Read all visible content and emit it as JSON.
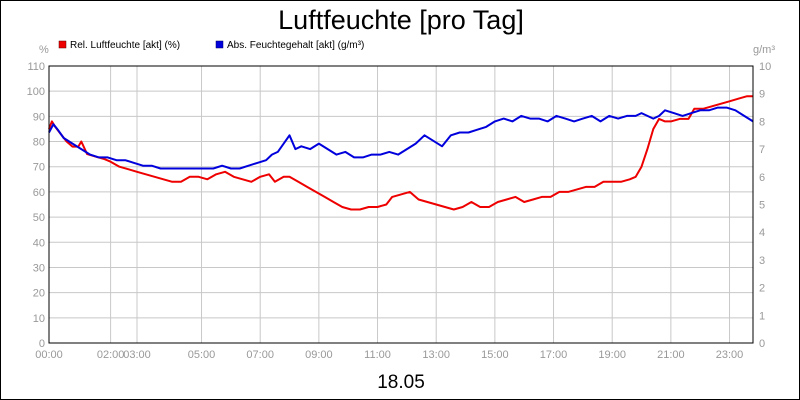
{
  "chart_data": {
    "type": "line",
    "title": "Luftfeuchte [pro Tag]",
    "subtitle": "18.05",
    "ylabel_left": "%",
    "ylabel_right": "g/m³",
    "ylim_left": [
      0,
      110
    ],
    "ylim_right": [
      0,
      10
    ],
    "y_ticks_left": [
      0,
      10,
      20,
      30,
      40,
      50,
      60,
      70,
      80,
      90,
      100,
      110
    ],
    "y_ticks_right": [
      0,
      1,
      2,
      3,
      4,
      5,
      6,
      7,
      8,
      9,
      10
    ],
    "xlim_hours": [
      0,
      24
    ],
    "x_ticks": [
      {
        "h": 0,
        "label": "00:00"
      },
      {
        "h": 2.1,
        "label": "02:00"
      },
      {
        "h": 3.0,
        "label": "03:00"
      },
      {
        "h": 5.2,
        "label": "05:00"
      },
      {
        "h": 7.2,
        "label": "07:00"
      },
      {
        "h": 9.2,
        "label": "09:00"
      },
      {
        "h": 11.2,
        "label": "11:00"
      },
      {
        "h": 13.2,
        "label": "13:00"
      },
      {
        "h": 15.2,
        "label": "15:00"
      },
      {
        "h": 17.2,
        "label": "17:00"
      },
      {
        "h": 19.2,
        "label": "19:00"
      },
      {
        "h": 21.2,
        "label": "21:00"
      },
      {
        "h": 23.2,
        "label": "23:00"
      }
    ],
    "grid": true,
    "legend_position": "top-left",
    "series": [
      {
        "name": "Rel. Luftfeuchte [akt] (%)",
        "color": "#ee0000",
        "axis": "left",
        "points": [
          [
            0.0,
            85
          ],
          [
            0.1,
            88
          ],
          [
            0.2,
            86
          ],
          [
            0.4,
            83
          ],
          [
            0.6,
            80
          ],
          [
            0.8,
            78
          ],
          [
            1.0,
            78
          ],
          [
            1.1,
            80
          ],
          [
            1.3,
            75
          ],
          [
            1.6,
            74
          ],
          [
            1.9,
            73
          ],
          [
            2.1,
            72
          ],
          [
            2.4,
            70
          ],
          [
            2.7,
            69
          ],
          [
            3.0,
            68
          ],
          [
            3.3,
            67
          ],
          [
            3.6,
            66
          ],
          [
            3.9,
            65
          ],
          [
            4.2,
            64
          ],
          [
            4.5,
            64
          ],
          [
            4.8,
            66
          ],
          [
            5.1,
            66
          ],
          [
            5.4,
            65
          ],
          [
            5.7,
            67
          ],
          [
            6.0,
            68
          ],
          [
            6.3,
            66
          ],
          [
            6.6,
            65
          ],
          [
            6.9,
            64
          ],
          [
            7.2,
            66
          ],
          [
            7.5,
            67
          ],
          [
            7.7,
            64
          ],
          [
            8.0,
            66
          ],
          [
            8.2,
            66
          ],
          [
            8.5,
            64
          ],
          [
            8.8,
            62
          ],
          [
            9.1,
            60
          ],
          [
            9.4,
            58
          ],
          [
            9.7,
            56
          ],
          [
            10.0,
            54
          ],
          [
            10.3,
            53
          ],
          [
            10.6,
            53
          ],
          [
            10.9,
            54
          ],
          [
            11.2,
            54
          ],
          [
            11.5,
            55
          ],
          [
            11.7,
            58
          ],
          [
            12.0,
            59
          ],
          [
            12.3,
            60
          ],
          [
            12.6,
            57
          ],
          [
            12.9,
            56
          ],
          [
            13.2,
            55
          ],
          [
            13.5,
            54
          ],
          [
            13.8,
            53
          ],
          [
            14.1,
            54
          ],
          [
            14.4,
            56
          ],
          [
            14.7,
            54
          ],
          [
            15.0,
            54
          ],
          [
            15.3,
            56
          ],
          [
            15.6,
            57
          ],
          [
            15.9,
            58
          ],
          [
            16.2,
            56
          ],
          [
            16.5,
            57
          ],
          [
            16.8,
            58
          ],
          [
            17.1,
            58
          ],
          [
            17.4,
            60
          ],
          [
            17.7,
            60
          ],
          [
            18.0,
            61
          ],
          [
            18.3,
            62
          ],
          [
            18.6,
            62
          ],
          [
            18.9,
            64
          ],
          [
            19.2,
            64
          ],
          [
            19.5,
            64
          ],
          [
            19.8,
            65
          ],
          [
            20.0,
            66
          ],
          [
            20.2,
            70
          ],
          [
            20.4,
            77
          ],
          [
            20.6,
            85
          ],
          [
            20.8,
            89
          ],
          [
            21.0,
            88
          ],
          [
            21.2,
            88
          ],
          [
            21.5,
            89
          ],
          [
            21.8,
            89
          ],
          [
            22.0,
            93
          ],
          [
            22.3,
            93
          ],
          [
            22.6,
            94
          ],
          [
            22.9,
            95
          ],
          [
            23.2,
            96
          ],
          [
            23.5,
            97
          ],
          [
            23.8,
            98
          ],
          [
            24.0,
            98
          ]
        ]
      },
      {
        "name": "Abs. Feuchtegehalt [akt] (g/m³)",
        "color": "#0000dd",
        "axis": "right",
        "points": [
          [
            0.0,
            7.6
          ],
          [
            0.15,
            7.9
          ],
          [
            0.3,
            7.7
          ],
          [
            0.5,
            7.4
          ],
          [
            0.8,
            7.2
          ],
          [
            1.1,
            7.0
          ],
          [
            1.4,
            6.8
          ],
          [
            1.7,
            6.7
          ],
          [
            2.0,
            6.7
          ],
          [
            2.3,
            6.6
          ],
          [
            2.6,
            6.6
          ],
          [
            2.9,
            6.5
          ],
          [
            3.2,
            6.4
          ],
          [
            3.5,
            6.4
          ],
          [
            3.8,
            6.3
          ],
          [
            4.1,
            6.3
          ],
          [
            4.4,
            6.3
          ],
          [
            4.7,
            6.3
          ],
          [
            5.0,
            6.3
          ],
          [
            5.3,
            6.3
          ],
          [
            5.6,
            6.3
          ],
          [
            5.9,
            6.4
          ],
          [
            6.2,
            6.3
          ],
          [
            6.5,
            6.3
          ],
          [
            6.8,
            6.4
          ],
          [
            7.1,
            6.5
          ],
          [
            7.4,
            6.6
          ],
          [
            7.6,
            6.8
          ],
          [
            7.8,
            6.9
          ],
          [
            8.0,
            7.2
          ],
          [
            8.2,
            7.5
          ],
          [
            8.4,
            7.0
          ],
          [
            8.6,
            7.1
          ],
          [
            8.9,
            7.0
          ],
          [
            9.2,
            7.2
          ],
          [
            9.5,
            7.0
          ],
          [
            9.8,
            6.8
          ],
          [
            10.1,
            6.9
          ],
          [
            10.4,
            6.7
          ],
          [
            10.7,
            6.7
          ],
          [
            11.0,
            6.8
          ],
          [
            11.3,
            6.8
          ],
          [
            11.6,
            6.9
          ],
          [
            11.9,
            6.8
          ],
          [
            12.2,
            7.0
          ],
          [
            12.5,
            7.2
          ],
          [
            12.8,
            7.5
          ],
          [
            13.1,
            7.3
          ],
          [
            13.4,
            7.1
          ],
          [
            13.7,
            7.5
          ],
          [
            14.0,
            7.6
          ],
          [
            14.3,
            7.6
          ],
          [
            14.6,
            7.7
          ],
          [
            14.9,
            7.8
          ],
          [
            15.2,
            8.0
          ],
          [
            15.5,
            8.1
          ],
          [
            15.8,
            8.0
          ],
          [
            16.1,
            8.2
          ],
          [
            16.4,
            8.1
          ],
          [
            16.7,
            8.1
          ],
          [
            17.0,
            8.0
          ],
          [
            17.3,
            8.2
          ],
          [
            17.6,
            8.1
          ],
          [
            17.9,
            8.0
          ],
          [
            18.2,
            8.1
          ],
          [
            18.5,
            8.2
          ],
          [
            18.8,
            8.0
          ],
          [
            19.1,
            8.2
          ],
          [
            19.4,
            8.1
          ],
          [
            19.7,
            8.2
          ],
          [
            20.0,
            8.2
          ],
          [
            20.2,
            8.3
          ],
          [
            20.4,
            8.2
          ],
          [
            20.6,
            8.1
          ],
          [
            20.8,
            8.2
          ],
          [
            21.0,
            8.4
          ],
          [
            21.3,
            8.3
          ],
          [
            21.6,
            8.2
          ],
          [
            21.9,
            8.3
          ],
          [
            22.2,
            8.4
          ],
          [
            22.5,
            8.4
          ],
          [
            22.8,
            8.5
          ],
          [
            23.1,
            8.5
          ],
          [
            23.4,
            8.4
          ],
          [
            23.7,
            8.2
          ],
          [
            24.0,
            8.0
          ]
        ]
      }
    ]
  }
}
